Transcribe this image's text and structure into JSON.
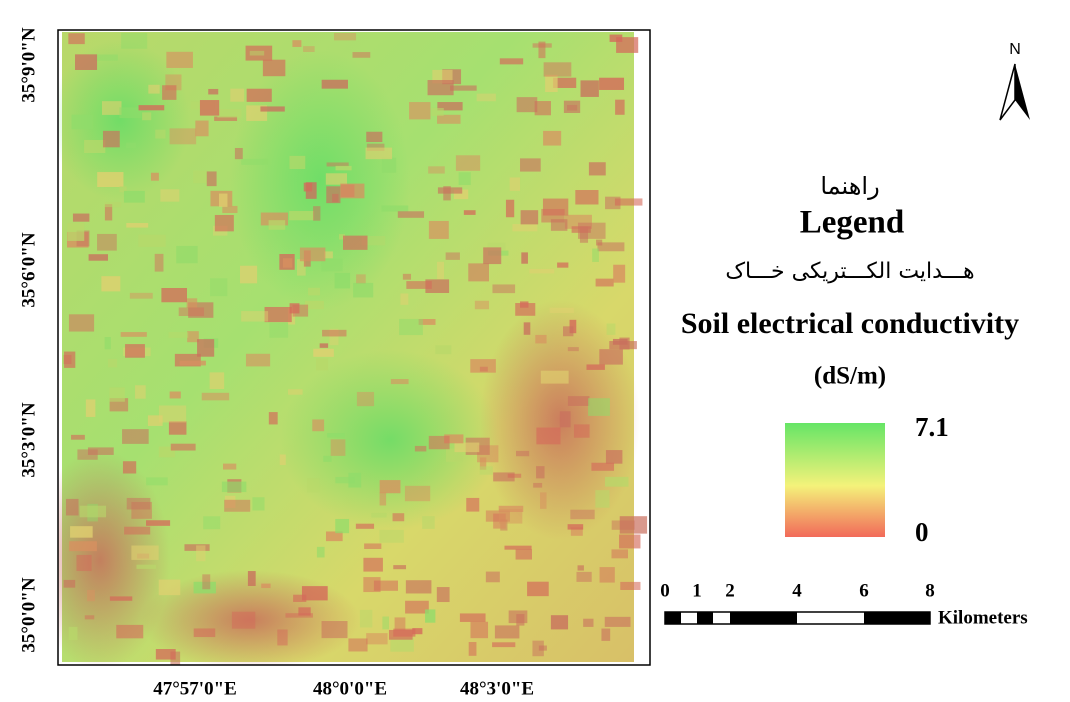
{
  "map": {
    "lat_labels": [
      "35°9'0\"N",
      "35°6'0\"N",
      "35°3'0\"N",
      "35°0'0\"N"
    ],
    "lon_labels": [
      "47°57'0\"E",
      "48°0'0\"E",
      "48°3'0\"E"
    ],
    "north": "N"
  },
  "legend": {
    "title_fa": "راهنما",
    "title": "Legend",
    "variable_fa": "هـــدایت الکـــتریکی خـــاک",
    "variable": "Soil electrical conductivity",
    "unit": "(dS/m)",
    "max_label": "7.1",
    "min_label": "0"
  },
  "scale_bar": {
    "ticks": [
      "0",
      "1",
      "2",
      "4",
      "6",
      "8"
    ],
    "unit": "Kilometers"
  }
}
